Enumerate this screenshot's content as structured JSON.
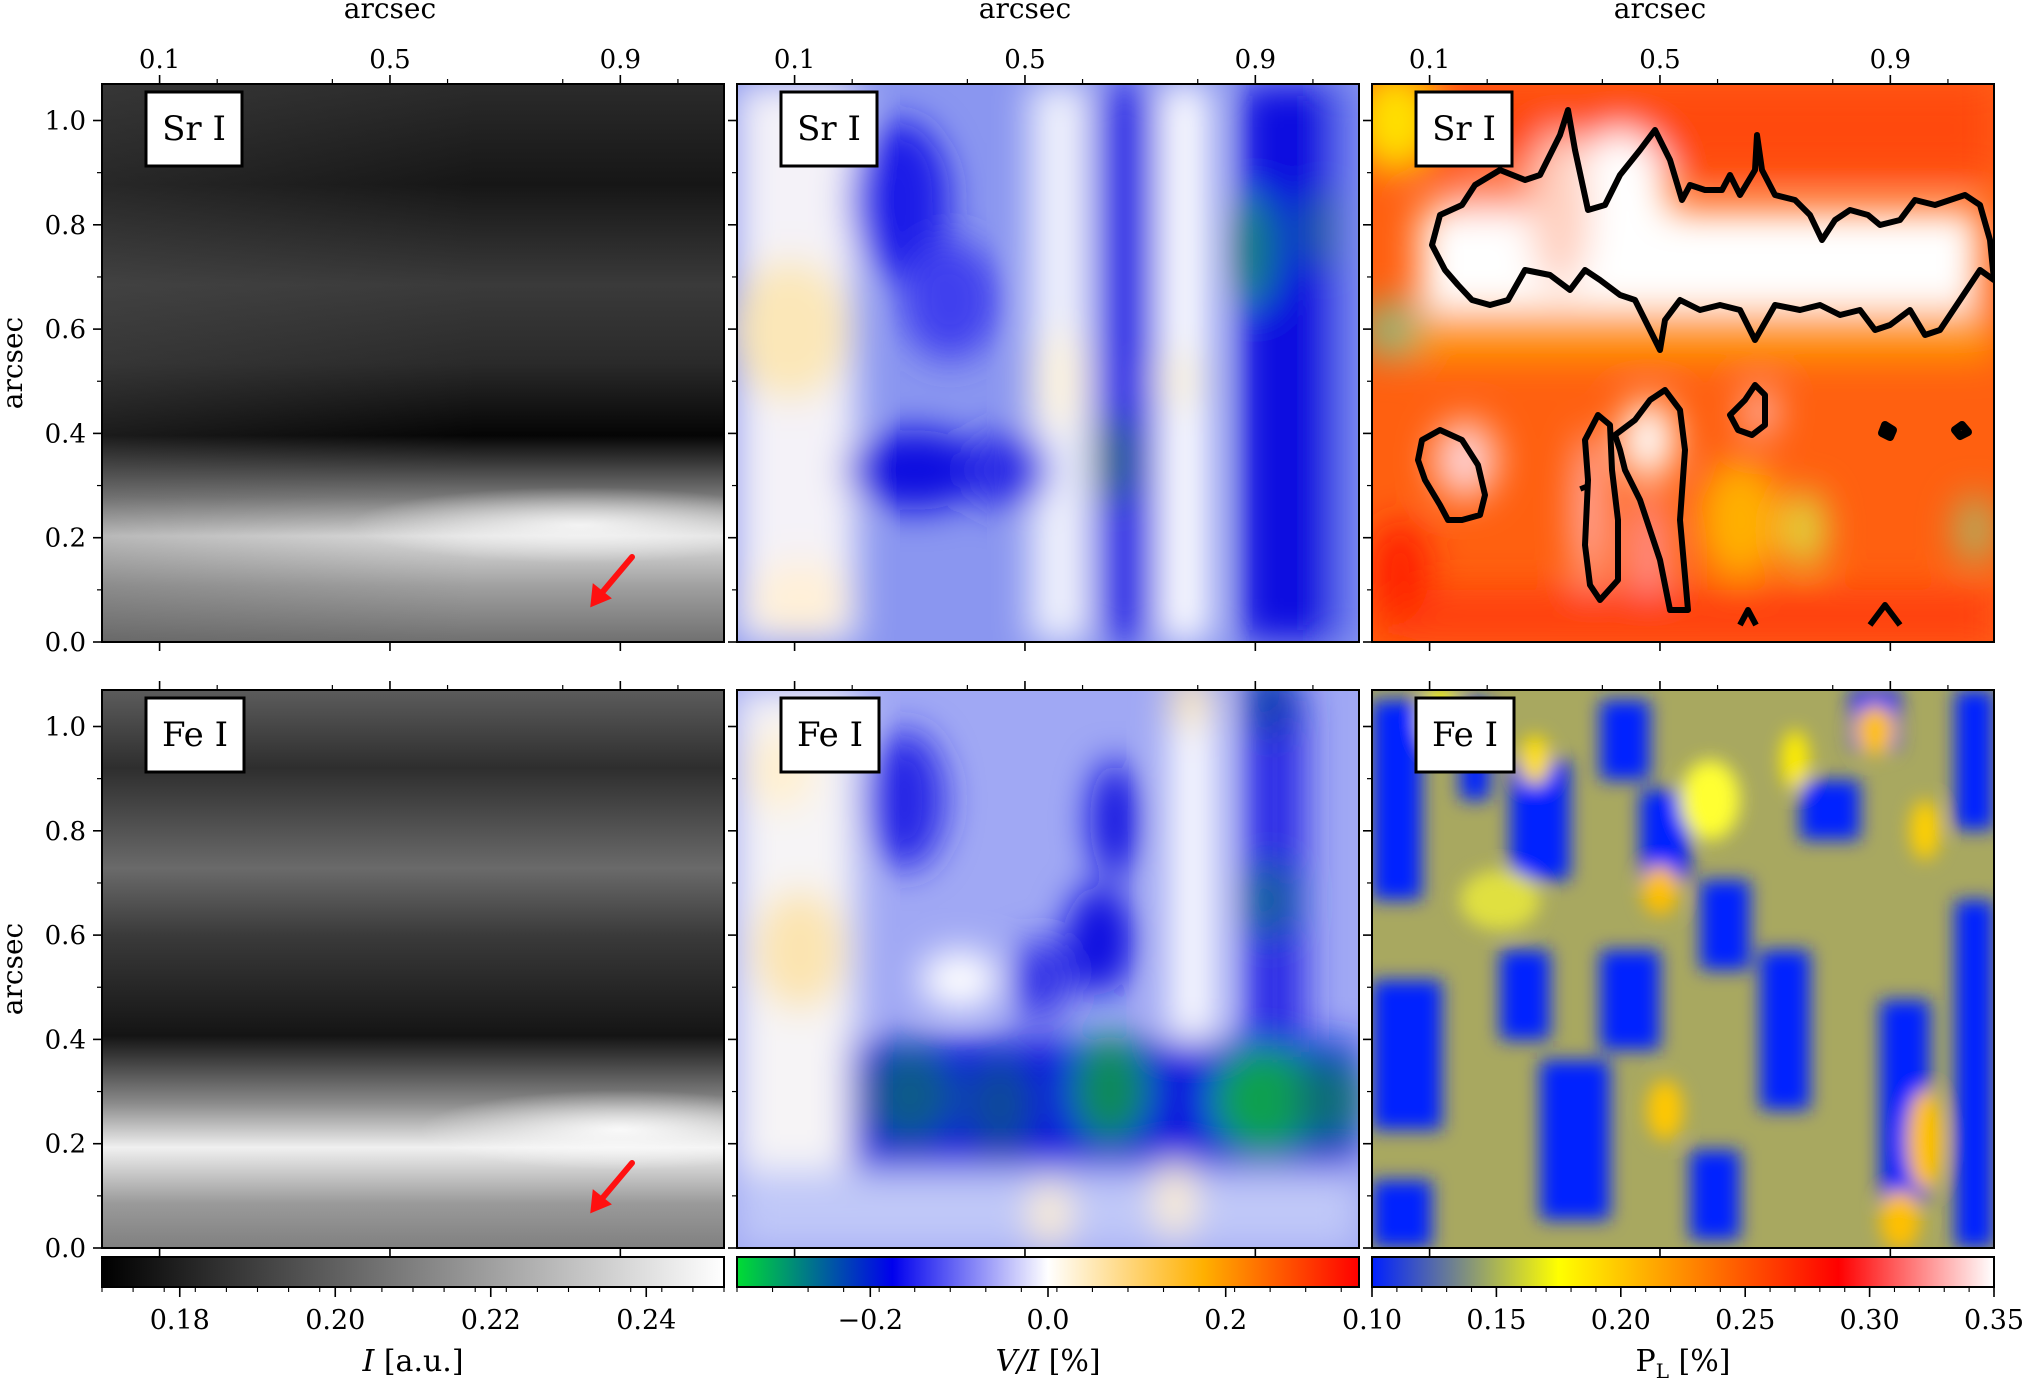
{
  "chart_data": {
    "type": "heatmap",
    "axes": {
      "x_top_label": "arcsec",
      "x_ticks": [
        "0.1",
        "0.5",
        "0.9"
      ],
      "x_tick_values": [
        0.1,
        0.5,
        0.9
      ],
      "xlim": [
        0.0,
        1.08
      ],
      "y_label": "arcsec",
      "y_ticks": [
        "0.0",
        "0.2",
        "0.4",
        "0.6",
        "0.8",
        "1.0"
      ],
      "y_tick_values": [
        0.0,
        0.2,
        0.4,
        0.6,
        0.8,
        1.0
      ],
      "ylim": [
        0.0,
        1.07
      ]
    },
    "panels": [
      {
        "row": 0,
        "col": 0,
        "label": "Sr I",
        "quantity": "I",
        "arrow": true
      },
      {
        "row": 0,
        "col": 1,
        "label": "Sr I",
        "quantity": "V/I"
      },
      {
        "row": 0,
        "col": 2,
        "label": "Sr I",
        "quantity": "PL",
        "contours": true
      },
      {
        "row": 1,
        "col": 0,
        "label": "Fe I",
        "quantity": "I",
        "arrow": true
      },
      {
        "row": 1,
        "col": 1,
        "label": "Fe I",
        "quantity": "V/I"
      },
      {
        "row": 1,
        "col": 2,
        "label": "Fe I",
        "quantity": "PL"
      }
    ],
    "colorbars": [
      {
        "col": 0,
        "label": "I [a.u.]",
        "range": [
          0.17,
          0.25
        ],
        "ticks": [
          "0.18",
          "0.20",
          "0.22",
          "0.24"
        ],
        "tick_values": [
          0.18,
          0.2,
          0.22,
          0.24
        ],
        "colormap": "gray",
        "colors": [
          "#000000",
          "#ffffff"
        ]
      },
      {
        "col": 1,
        "label": "V/I [%]",
        "range": [
          -0.35,
          0.35
        ],
        "ticks": [
          "−0.2",
          "0.0",
          "0.2"
        ],
        "tick_values": [
          -0.2,
          0.0,
          0.2
        ],
        "colormap": "green-blue-white-orange-red",
        "colors": [
          "#00dd33",
          "#0000ee",
          "#ffffff",
          "#ffb000",
          "#ff0000"
        ]
      },
      {
        "col": 2,
        "label": "PL [%]",
        "range": [
          0.1,
          0.35
        ],
        "ticks": [
          "0.10",
          "0.15",
          "0.20",
          "0.25",
          "0.30",
          "0.35"
        ],
        "tick_values": [
          0.1,
          0.15,
          0.2,
          0.25,
          0.3,
          0.35
        ],
        "colormap": "blue-yellow-red-white",
        "colors": [
          "#0020ff",
          "#ffff00",
          "#ff0000",
          "#ffffff"
        ]
      }
    ]
  }
}
